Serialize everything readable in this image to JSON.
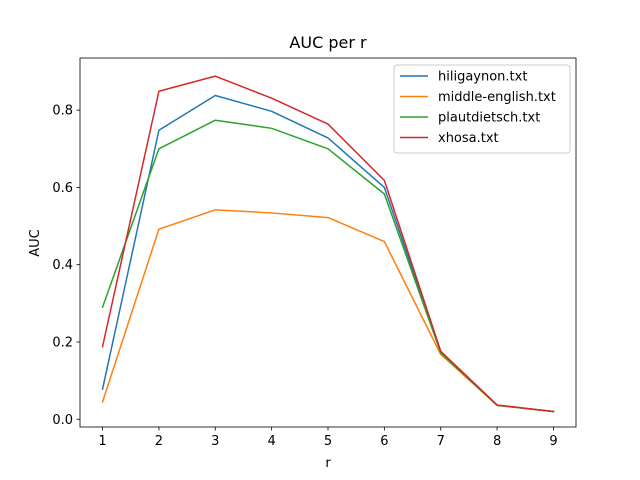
{
  "chart_data": {
    "type": "line",
    "title": "AUC per r",
    "xlabel": "r",
    "ylabel": "AUC",
    "x": [
      1,
      2,
      3,
      4,
      5,
      6,
      7,
      8,
      9
    ],
    "xlim": [
      0.6,
      9.4
    ],
    "ylim": [
      -0.02,
      0.935
    ],
    "xticks": [
      1,
      2,
      3,
      4,
      5,
      6,
      7,
      8,
      9
    ],
    "yticks": [
      0.0,
      0.2,
      0.4,
      0.6,
      0.8
    ],
    "ytick_labels": [
      "0.0",
      "0.2",
      "0.4",
      "0.6",
      "0.8"
    ],
    "grid": false,
    "legend_position": "top-right",
    "series": [
      {
        "name": "hiligaynon.txt",
        "color": "#1f77b4",
        "values": [
          0.078,
          0.748,
          0.838,
          0.797,
          0.728,
          0.6,
          0.175,
          0.036,
          0.02
        ]
      },
      {
        "name": "middle-english.txt",
        "color": "#ff7f0e",
        "values": [
          0.045,
          0.492,
          0.542,
          0.534,
          0.522,
          0.46,
          0.168,
          0.036,
          0.02
        ]
      },
      {
        "name": "plautdietsch.txt",
        "color": "#2ca02c",
        "values": [
          0.29,
          0.7,
          0.774,
          0.753,
          0.7,
          0.583,
          0.172,
          0.036,
          0.02
        ]
      },
      {
        "name": "xhosa.txt",
        "color": "#d62728",
        "values": [
          0.188,
          0.849,
          0.888,
          0.831,
          0.764,
          0.618,
          0.176,
          0.037,
          0.02
        ]
      }
    ]
  }
}
